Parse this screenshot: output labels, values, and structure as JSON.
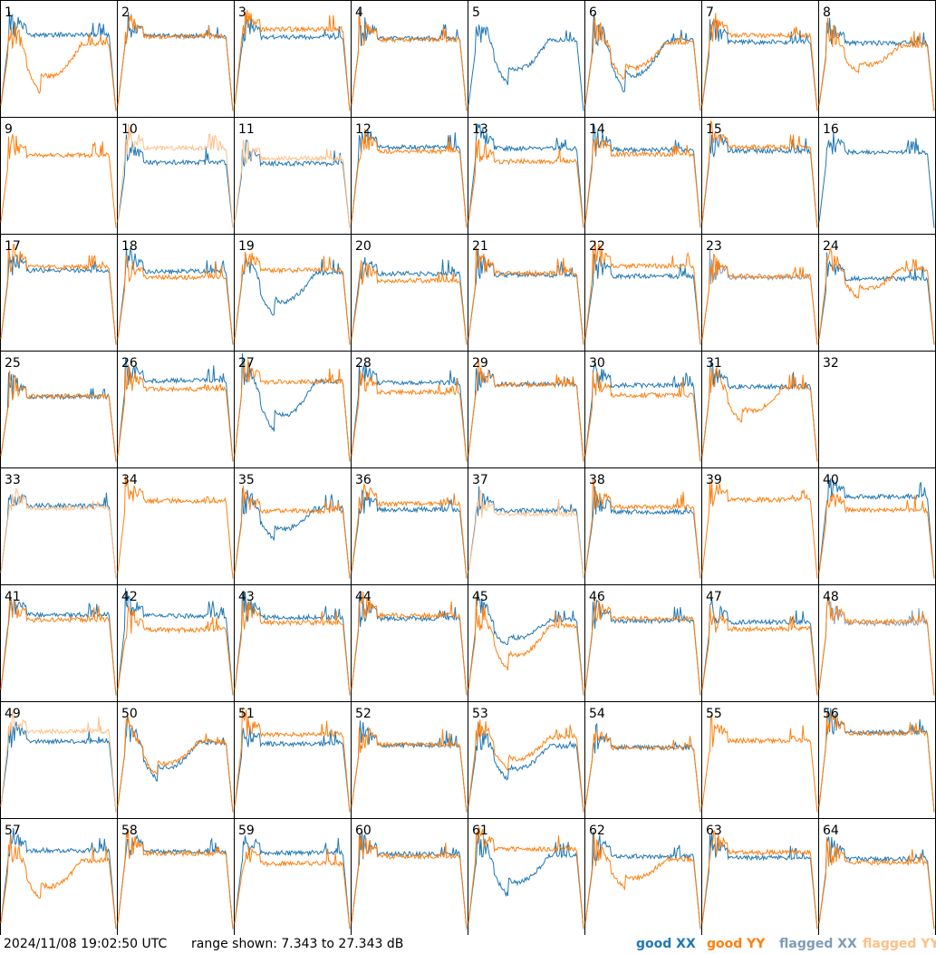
{
  "chart_data": {
    "type": "line",
    "layout": "8x8 small multiples (tile spectra)",
    "panel_labels": [
      "1",
      "2",
      "3",
      "4",
      "5",
      "6",
      "7",
      "8",
      "9",
      "10",
      "11",
      "12",
      "13",
      "14",
      "15",
      "16",
      "17",
      "18",
      "19",
      "20",
      "21",
      "22",
      "23",
      "24",
      "25",
      "26",
      "27",
      "28",
      "29",
      "30",
      "31",
      "32",
      "33",
      "34",
      "35",
      "36",
      "37",
      "38",
      "39",
      "40",
      "41",
      "42",
      "43",
      "44",
      "45",
      "46",
      "47",
      "48",
      "49",
      "50",
      "51",
      "52",
      "53",
      "54",
      "55",
      "56",
      "57",
      "58",
      "59",
      "60",
      "61",
      "62",
      "63",
      "64"
    ],
    "series_styles": {
      "good_xx": "#1f77b4",
      "good_yy": "#ff7f0e",
      "flagged_xx": "#7f9cb8",
      "flagged_yy": "#ffbf86"
    },
    "flagged_xx_panels": [
      23,
      48
    ],
    "flagged_yy_panels": [
      10,
      11,
      32,
      33,
      37,
      49
    ],
    "dead_xx_panels": [
      9,
      32,
      34,
      39,
      55
    ],
    "dead_yy_panels": [
      5,
      16,
      32
    ],
    "ylim_db": [
      7.343,
      27.343
    ],
    "grid": false
  },
  "footer": {
    "timestamp": "2024/11/08 19:02:50 UTC",
    "range": "range shown: 7.343 to 27.343 dB",
    "legend": {
      "good_xx": "good XX",
      "good_yy": "good YY",
      "flagged_xx": "flagged XX",
      "flagged_yy": "flagged YY"
    }
  }
}
